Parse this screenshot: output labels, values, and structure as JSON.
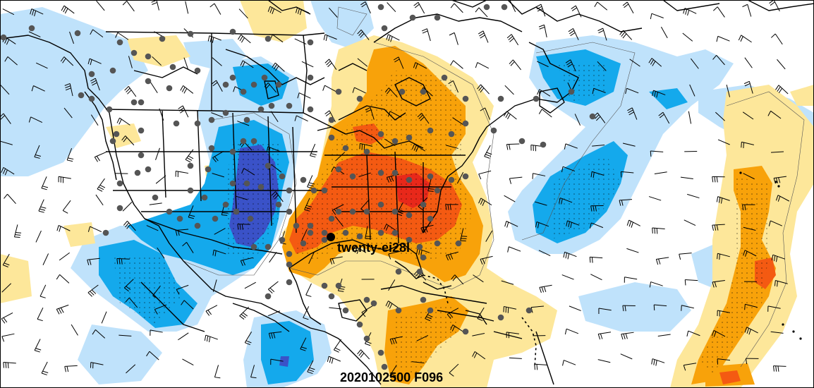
{
  "map": {
    "storm_label": "twenty-ei28l",
    "valid_time": "2020102500 F096",
    "palette": {
      "deep_blue": "#3a52c8",
      "mid_blue": "#14a9ec",
      "light_blue": "#bfe2fb",
      "light_yellow": "#fde79a",
      "orange": "#f8a20a",
      "red_orange": "#f45a12",
      "red": "#e8281a"
    }
  }
}
